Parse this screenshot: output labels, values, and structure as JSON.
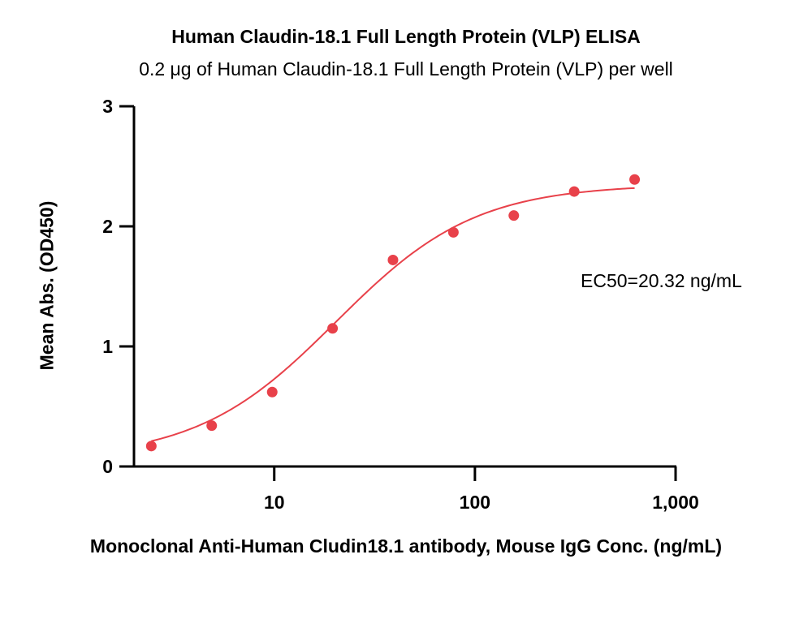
{
  "chart_data": {
    "type": "scatter",
    "title": "Human Claudin-18.1 Full Length Protein (VLP) ELISA",
    "subtitle": "0.2 μg of Human Claudin-18.1 Full Length Protein (VLP) per well",
    "xlabel": "Monoclonal Anti-Human Cludin18.1 antibody, Mouse IgG Conc. (ng/mL)",
    "ylabel": "Mean Abs. (OD450)",
    "xscale": "log",
    "xlim": [
      2,
      1000
    ],
    "ylim": [
      0,
      3
    ],
    "x_ticks": [
      10,
      100,
      1000
    ],
    "x_tick_labels": [
      "10",
      "100",
      "1,000"
    ],
    "y_ticks": [
      0,
      1,
      2,
      3
    ],
    "y_tick_labels": [
      "0",
      "1",
      "2",
      "3"
    ],
    "series": [
      {
        "name": "Mean Abs.",
        "color": "#e8414a",
        "x": [
          2.44,
          4.88,
          9.77,
          19.53,
          39.06,
          78.13,
          156.25,
          312.5,
          625
        ],
        "y": [
          0.17,
          0.34,
          0.62,
          1.15,
          1.72,
          1.95,
          2.09,
          2.29,
          2.39
        ]
      }
    ],
    "fit": {
      "model": "4PL",
      "bottom": 0.06,
      "top": 2.35,
      "ec50": 20.32,
      "hill": 1.25,
      "x_range": [
        2.44,
        625
      ],
      "color": "#e8414a"
    },
    "annotation": "EC50=20.32 ng/mL",
    "grid": false
  }
}
